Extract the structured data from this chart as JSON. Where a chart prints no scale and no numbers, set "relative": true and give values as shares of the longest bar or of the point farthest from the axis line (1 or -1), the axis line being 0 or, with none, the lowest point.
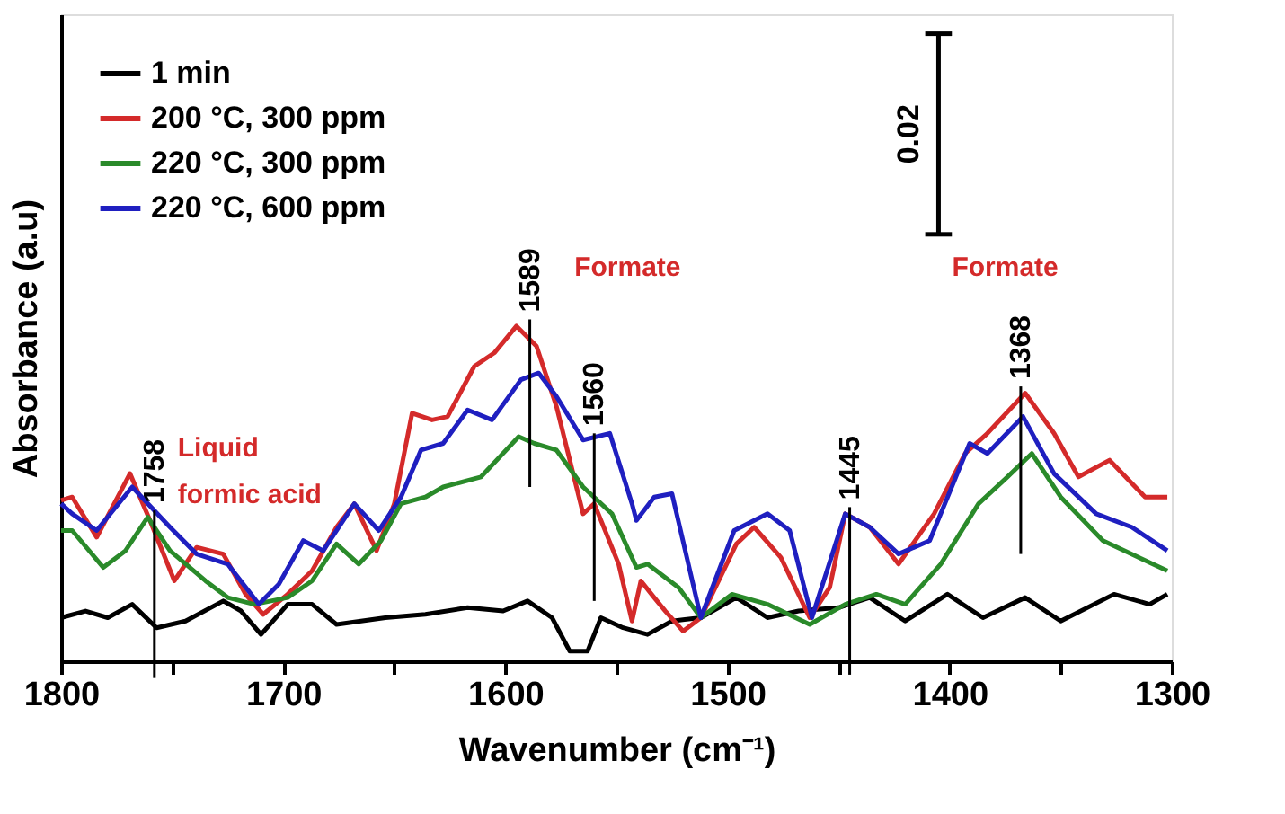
{
  "chart_data": {
    "type": "line",
    "relative": true,
    "xlabel": "Wavenumber (cm⁻¹)",
    "ylabel": "Absorbance (a.u)",
    "xlim": [
      1800,
      1300
    ],
    "xticks": [
      1800,
      {
        "value": 1750,
        "label": null
      },
      1700,
      {
        "value": 1650,
        "label": null
      },
      1600,
      {
        "value": 1550,
        "label": null
      },
      1500,
      {
        "value": 1450,
        "label": null
      },
      1400,
      {
        "value": 1350,
        "label": null
      },
      1300
    ],
    "legend": "top left",
    "grid": false,
    "marker": "none",
    "line_style": "solid",
    "tick_labels": "x",
    "ref_lines": [
      {
        "axis": "x",
        "value": 1758,
        "label": "1758"
      },
      {
        "axis": "x",
        "value": 1589,
        "label": "1589"
      },
      {
        "axis": "x",
        "value": 1560,
        "label": "1560"
      },
      {
        "axis": "x",
        "value": 1445,
        "label": "1445"
      },
      {
        "axis": "x",
        "value": 1368,
        "label": "1368"
      }
    ],
    "annotations": [
      "Liquid\nformic acid",
      "Formate",
      "Formate",
      "0.02"
    ],
    "series": [
      {
        "name": "1 min",
        "color": "#000000",
        "x": [
          1800,
          1789,
          1779,
          1768,
          1757,
          1744,
          1727,
          1719,
          1710,
          1698,
          1687,
          1676,
          1654,
          1636,
          1617,
          1601,
          1590,
          1579,
          1571,
          1563,
          1557,
          1547,
          1536,
          1525,
          1512,
          1496,
          1482,
          1468,
          1450,
          1436,
          1420,
          1401,
          1385,
          1366,
          1350,
          1326,
          1310,
          1302
        ],
        "values": [
          0.13,
          0.15,
          0.13,
          0.17,
          0.1,
          0.12,
          0.18,
          0.15,
          0.08,
          0.17,
          0.17,
          0.11,
          0.13,
          0.14,
          0.16,
          0.15,
          0.18,
          0.13,
          0.03,
          0.03,
          0.13,
          0.1,
          0.08,
          0.12,
          0.13,
          0.19,
          0.13,
          0.15,
          0.16,
          0.19,
          0.12,
          0.2,
          0.13,
          0.19,
          0.12,
          0.2,
          0.17,
          0.2
        ]
      },
      {
        "name": "200 °C, 300 ppm",
        "color": "#d42a2a",
        "x": [
          1800,
          1795,
          1784,
          1769,
          1760,
          1749,
          1739,
          1727,
          1717,
          1709,
          1698,
          1687,
          1676,
          1668,
          1658,
          1650,
          1642,
          1633,
          1626,
          1614,
          1605,
          1595,
          1586,
          1577,
          1565,
          1560,
          1549,
          1543,
          1539,
          1533,
          1528,
          1520,
          1512,
          1496,
          1488,
          1476,
          1463,
          1454,
          1447,
          1436,
          1423,
          1407,
          1393,
          1383,
          1366,
          1353,
          1342,
          1328,
          1312,
          1302
        ],
        "values": [
          0.48,
          0.49,
          0.37,
          0.56,
          0.42,
          0.24,
          0.34,
          0.32,
          0.2,
          0.14,
          0.2,
          0.27,
          0.4,
          0.47,
          0.33,
          0.47,
          0.74,
          0.72,
          0.73,
          0.88,
          0.92,
          1.0,
          0.94,
          0.76,
          0.44,
          0.47,
          0.29,
          0.12,
          0.24,
          0.19,
          0.15,
          0.09,
          0.13,
          0.35,
          0.4,
          0.31,
          0.13,
          0.22,
          0.44,
          0.4,
          0.29,
          0.44,
          0.62,
          0.68,
          0.8,
          0.68,
          0.55,
          0.6,
          0.49,
          0.49
        ]
      },
      {
        "name": "220 °C, 300 ppm",
        "color": "#2a8a2a",
        "x": [
          1800,
          1795,
          1781,
          1771,
          1761,
          1751,
          1735,
          1725,
          1713,
          1698,
          1687,
          1676,
          1666,
          1656,
          1647,
          1636,
          1628,
          1611,
          1594,
          1587,
          1577,
          1565,
          1552,
          1541,
          1536,
          1522,
          1512,
          1498,
          1482,
          1463,
          1447,
          1433,
          1420,
          1404,
          1387,
          1374,
          1363,
          1350,
          1331,
          1315,
          1302
        ],
        "values": [
          0.39,
          0.39,
          0.28,
          0.33,
          0.43,
          0.33,
          0.24,
          0.19,
          0.17,
          0.19,
          0.24,
          0.35,
          0.29,
          0.36,
          0.47,
          0.49,
          0.52,
          0.55,
          0.67,
          0.65,
          0.63,
          0.52,
          0.44,
          0.28,
          0.29,
          0.22,
          0.13,
          0.2,
          0.17,
          0.11,
          0.17,
          0.2,
          0.17,
          0.29,
          0.47,
          0.55,
          0.62,
          0.49,
          0.36,
          0.31,
          0.27
        ]
      },
      {
        "name": "220 °C, 600 ppm",
        "color": "#1f1fc0",
        "x": [
          1800,
          1795,
          1784,
          1768,
          1751,
          1739,
          1725,
          1711,
          1702,
          1691,
          1682,
          1668,
          1657,
          1647,
          1638,
          1628,
          1617,
          1606,
          1593,
          1585,
          1577,
          1565,
          1553,
          1543,
          1541,
          1533,
          1525,
          1512,
          1497,
          1482,
          1472,
          1462,
          1447,
          1436,
          1423,
          1409,
          1391,
          1383,
          1367,
          1353,
          1334,
          1318,
          1302
        ],
        "values": [
          0.47,
          0.44,
          0.39,
          0.52,
          0.4,
          0.32,
          0.29,
          0.17,
          0.23,
          0.36,
          0.33,
          0.47,
          0.39,
          0.49,
          0.63,
          0.65,
          0.75,
          0.72,
          0.84,
          0.86,
          0.79,
          0.66,
          0.68,
          0.47,
          0.42,
          0.49,
          0.5,
          0.13,
          0.39,
          0.44,
          0.39,
          0.13,
          0.44,
          0.4,
          0.32,
          0.36,
          0.65,
          0.62,
          0.73,
          0.56,
          0.44,
          0.4,
          0.33
        ]
      }
    ]
  }
}
